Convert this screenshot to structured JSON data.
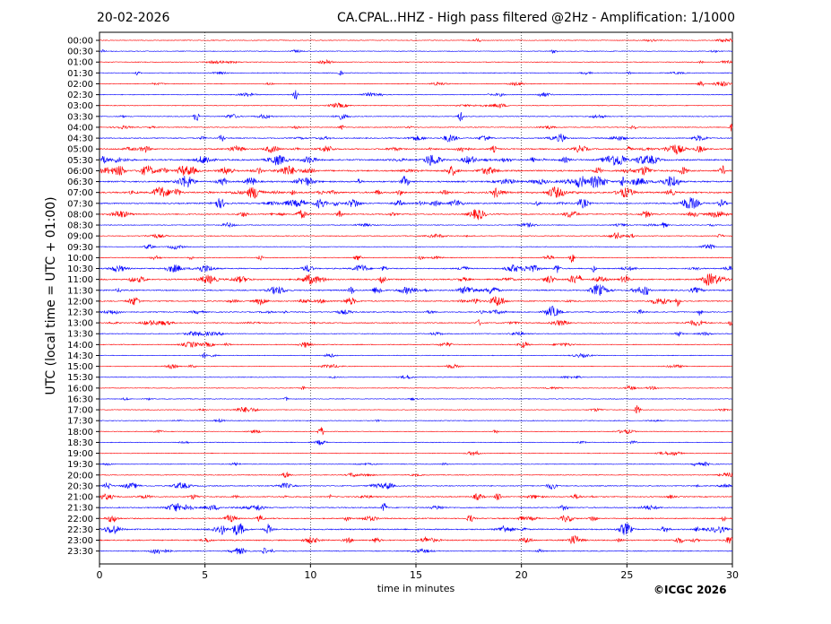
{
  "header": {
    "date": "20-02-2026",
    "title": "CA.CPAL..HHZ - High pass filtered @2Hz - Amplification: 1/1000"
  },
  "footer": {
    "copyright": "©ICGC 2026"
  },
  "colors": {
    "even_row": "#ff0000",
    "odd_row": "#0000ff",
    "gridline": "#000000"
  },
  "chart_data": {
    "type": "line",
    "title": "CA.CPAL..HHZ - High pass filtered @2Hz - Amplification: 1/1000",
    "xlabel": "time in minutes",
    "ylabel": "UTC (local time = UTC + 01:00)",
    "xlim": [
      0,
      30
    ],
    "x_ticks": [
      0,
      5,
      10,
      15,
      20,
      25,
      30
    ],
    "vertical_grid": "dotted at every 5 minutes",
    "row_colors": [
      "red",
      "blue"
    ],
    "rows": [
      "00:00",
      "00:30",
      "01:00",
      "01:30",
      "02:00",
      "02:30",
      "03:00",
      "03:30",
      "04:00",
      "04:30",
      "05:00",
      "05:30",
      "06:00",
      "06:30",
      "07:00",
      "07:30",
      "08:00",
      "08:30",
      "09:00",
      "09:30",
      "10:00",
      "10:30",
      "11:00",
      "11:30",
      "12:00",
      "12:30",
      "13:00",
      "13:30",
      "14:00",
      "14:30",
      "15:00",
      "15:30",
      "16:00",
      "16:30",
      "17:00",
      "17:30",
      "18:00",
      "18:30",
      "19:00",
      "19:30",
      "20:00",
      "20:30",
      "21:00",
      "21:30",
      "22:00",
      "22:30",
      "23:00",
      "23:30"
    ],
    "activity_level": [
      0.1,
      0.1,
      0.12,
      0.15,
      0.12,
      0.18,
      0.12,
      0.2,
      0.22,
      0.4,
      0.65,
      0.8,
      0.9,
      0.85,
      0.9,
      0.65,
      0.45,
      0.2,
      0.2,
      0.1,
      0.22,
      0.5,
      0.7,
      0.6,
      0.45,
      0.4,
      0.35,
      0.2,
      0.25,
      0.08,
      0.12,
      0.08,
      0.1,
      0.08,
      0.12,
      0.1,
      0.08,
      0.1,
      0.1,
      0.15,
      0.15,
      0.35,
      0.4,
      0.4,
      0.45,
      0.65,
      0.55,
      0.25
    ],
    "notable_events": [
      {
        "row": "02:00",
        "minute": 28.5
      },
      {
        "row": "02:30",
        "minute": 9.3
      },
      {
        "row": "03:30",
        "minute": 4.6
      },
      {
        "row": "03:30",
        "minute": 17.1
      },
      {
        "row": "04:00",
        "minute": 30.0
      },
      {
        "row": "10:00",
        "minute": 22.4
      },
      {
        "row": "10:30",
        "minute": 21.7
      },
      {
        "row": "11:30",
        "minute": 25.9
      },
      {
        "row": "12:00",
        "minute": 27.4
      },
      {
        "row": "17:00",
        "minute": 25.5
      },
      {
        "row": "18:00",
        "minute": 10.5
      },
      {
        "row": "21:00",
        "minute": 18.9
      },
      {
        "row": "21:30",
        "minute": 13.5
      }
    ]
  }
}
